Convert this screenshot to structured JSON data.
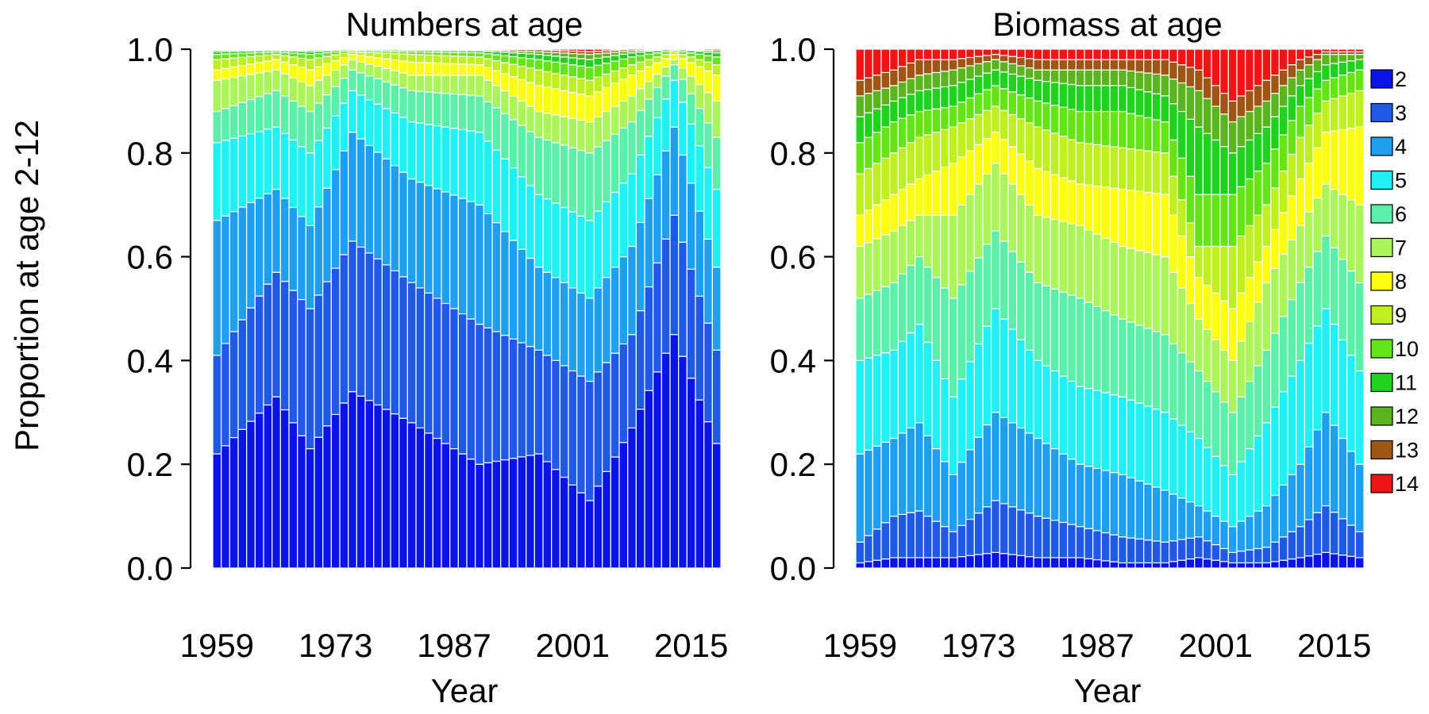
{
  "chart_data": {
    "type": "bar",
    "stacked": true,
    "ylabel": "Proportion at age 2-12",
    "y_ticks": [
      "0.0",
      "0.2",
      "0.4",
      "0.6",
      "0.8",
      "1.0"
    ],
    "ylim": [
      0,
      1
    ],
    "ages": [
      2,
      3,
      4,
      5,
      6,
      7,
      8,
      9,
      10,
      11,
      12,
      13,
      14
    ],
    "colors": [
      "#0a14e6",
      "#1e5ae6",
      "#1ea0f0",
      "#1ef0f5",
      "#5af0aa",
      "#aaf55a",
      "#ffff10",
      "#bef020",
      "#64e614",
      "#1ed21e",
      "#5ab41e",
      "#a05514",
      "#f01414"
    ],
    "legend": [
      "2",
      "3",
      "4",
      "5",
      "6",
      "7",
      "8",
      "9",
      "10",
      "11",
      "12",
      "13",
      "14"
    ],
    "x_first_year": 1959,
    "x_last_year": 2018,
    "x_tick_labels": [
      "1959",
      "1973",
      "1987",
      "2001",
      "2015"
    ],
    "x_tick_years": [
      1959,
      1973,
      1987,
      2001,
      2015
    ],
    "charts": [
      {
        "title": "Numbers at age",
        "xlabel": "Year",
        "anchors": [
          {
            "year": 1959,
            "cum": [
              0.22,
              0.41,
              0.67,
              0.82,
              0.88,
              0.94,
              0.96,
              0.98,
              0.99,
              0.995,
              0.998,
              0.999,
              1.0
            ]
          },
          {
            "year": 1966,
            "cum": [
              0.33,
              0.57,
              0.73,
              0.85,
              0.92,
              0.96,
              0.98,
              0.99,
              0.995,
              0.998,
              0.999,
              1.0,
              1.0
            ]
          },
          {
            "year": 1970,
            "cum": [
              0.23,
              0.5,
              0.66,
              0.8,
              0.88,
              0.93,
              0.96,
              0.98,
              0.99,
              0.995,
              0.998,
              1.0,
              1.0
            ]
          },
          {
            "year": 1975,
            "cum": [
              0.34,
              0.63,
              0.84,
              0.92,
              0.96,
              0.98,
              0.99,
              0.995,
              0.998,
              1.0,
              1.0,
              1.0,
              1.0
            ]
          },
          {
            "year": 1982,
            "cum": [
              0.28,
              0.55,
              0.75,
              0.86,
              0.92,
              0.95,
              0.975,
              0.99,
              0.995,
              0.998,
              1.0,
              1.0,
              1.0
            ]
          },
          {
            "year": 1990,
            "cum": [
              0.2,
              0.47,
              0.7,
              0.84,
              0.91,
              0.95,
              0.97,
              0.985,
              0.993,
              0.997,
              0.999,
              1.0,
              1.0
            ]
          },
          {
            "year": 1997,
            "cum": [
              0.22,
              0.42,
              0.58,
              0.72,
              0.83,
              0.88,
              0.93,
              0.96,
              0.98,
              0.99,
              0.995,
              0.999,
              1.0
            ]
          },
          {
            "year": 2003,
            "cum": [
              0.13,
              0.36,
              0.52,
              0.67,
              0.8,
              0.86,
              0.91,
              0.94,
              0.965,
              0.98,
              0.99,
              0.995,
              1.0
            ]
          },
          {
            "year": 2008,
            "cum": [
              0.27,
              0.45,
              0.62,
              0.76,
              0.86,
              0.91,
              0.95,
              0.97,
              0.985,
              0.993,
              0.997,
              1.0,
              1.0
            ]
          },
          {
            "year": 2013,
            "cum": [
              0.45,
              0.68,
              0.85,
              0.94,
              0.97,
              0.98,
              0.99,
              0.995,
              0.998,
              1.0,
              1.0,
              1.0,
              1.0
            ]
          },
          {
            "year": 2018,
            "cum": [
              0.24,
              0.42,
              0.58,
              0.73,
              0.83,
              0.9,
              0.95,
              0.97,
              0.985,
              0.993,
              0.997,
              1.0,
              1.0
            ]
          }
        ]
      },
      {
        "title": "Biomass at age",
        "xlabel": "Year",
        "anchors": [
          {
            "year": 1959,
            "cum": [
              0.01,
              0.05,
              0.22,
              0.4,
              0.52,
              0.62,
              0.68,
              0.76,
              0.82,
              0.87,
              0.91,
              0.94,
              1.0
            ]
          },
          {
            "year": 1963,
            "cum": [
              0.02,
              0.1,
              0.25,
              0.42,
              0.55,
              0.65,
              0.72,
              0.8,
              0.86,
              0.9,
              0.93,
              0.96,
              1.0
            ]
          },
          {
            "year": 1966,
            "cum": [
              0.02,
              0.11,
              0.28,
              0.47,
              0.6,
              0.68,
              0.75,
              0.83,
              0.88,
              0.92,
              0.95,
              0.98,
              1.0
            ]
          },
          {
            "year": 1970,
            "cum": [
              0.02,
              0.07,
              0.18,
              0.33,
              0.52,
              0.68,
              0.78,
              0.85,
              0.89,
              0.93,
              0.96,
              0.98,
              1.0
            ]
          },
          {
            "year": 1975,
            "cum": [
              0.03,
              0.13,
              0.3,
              0.5,
              0.65,
              0.78,
              0.84,
              0.89,
              0.93,
              0.96,
              0.98,
              0.99,
              1.0
            ]
          },
          {
            "year": 1980,
            "cum": [
              0.02,
              0.1,
              0.25,
              0.4,
              0.55,
              0.68,
              0.77,
              0.85,
              0.9,
              0.94,
              0.96,
              0.98,
              1.0
            ]
          },
          {
            "year": 1985,
            "cum": [
              0.02,
              0.08,
              0.2,
              0.35,
              0.52,
              0.66,
              0.74,
              0.82,
              0.88,
              0.93,
              0.96,
              0.98,
              1.0
            ]
          },
          {
            "year": 1990,
            "cum": [
              0.01,
              0.06,
              0.18,
              0.33,
              0.48,
              0.62,
              0.73,
              0.81,
              0.88,
              0.93,
              0.96,
              0.98,
              1.0
            ]
          },
          {
            "year": 1995,
            "cum": [
              0.01,
              0.05,
              0.15,
              0.3,
              0.45,
              0.6,
              0.72,
              0.8,
              0.86,
              0.91,
              0.95,
              0.98,
              1.0
            ]
          },
          {
            "year": 1999,
            "cum": [
              0.02,
              0.06,
              0.12,
              0.25,
              0.38,
              0.48,
              0.56,
              0.62,
              0.72,
              0.85,
              0.92,
              0.96,
              1.0
            ]
          },
          {
            "year": 2003,
            "cum": [
              0.01,
              0.03,
              0.08,
              0.18,
              0.3,
              0.4,
              0.5,
              0.62,
              0.72,
              0.8,
              0.86,
              0.9,
              1.0
            ]
          },
          {
            "year": 2007,
            "cum": [
              0.01,
              0.04,
              0.12,
              0.28,
              0.42,
              0.55,
              0.62,
              0.7,
              0.78,
              0.85,
              0.9,
              0.94,
              1.0
            ]
          },
          {
            "year": 2011,
            "cum": [
              0.02,
              0.08,
              0.2,
              0.4,
              0.55,
              0.66,
              0.75,
              0.83,
              0.89,
              0.93,
              0.96,
              0.98,
              1.0
            ]
          },
          {
            "year": 2014,
            "cum": [
              0.03,
              0.12,
              0.3,
              0.5,
              0.64,
              0.74,
              0.84,
              0.9,
              0.94,
              0.97,
              0.99,
              0.995,
              1.0
            ]
          },
          {
            "year": 2018,
            "cum": [
              0.02,
              0.07,
              0.2,
              0.38,
              0.55,
              0.7,
              0.85,
              0.92,
              0.96,
              0.98,
              0.99,
              0.995,
              1.0
            ]
          }
        ]
      }
    ]
  }
}
